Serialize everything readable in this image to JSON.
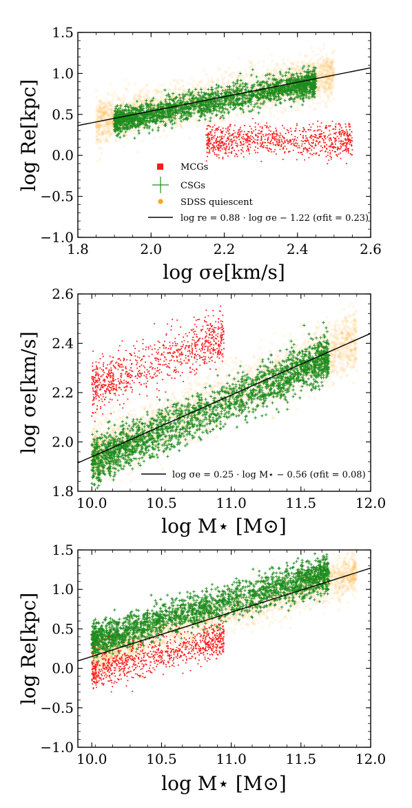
{
  "colors": {
    "mcg": "#ff1a1a",
    "csg": "#1e8c1e",
    "sdss": "#ffa31a",
    "fit": "#000000"
  },
  "legend": {
    "mcg": "MCGs",
    "csg": "CSGs",
    "sdss": "SDSS  quiescent"
  },
  "chart_data": [
    {
      "type": "scatter",
      "xlabel": "log σe[km/s]",
      "ylabel": "log Re[kpc]",
      "xlim": [
        1.8,
        2.6
      ],
      "ylim": [
        -1.0,
        1.5
      ],
      "xticks": [
        "1.8",
        "2.0",
        "2.2",
        "2.4",
        "2.6"
      ],
      "yticks": [
        "−1.0",
        "−0.5",
        "0.0",
        "0.5",
        "1.0",
        "1.5"
      ],
      "xtick_values": [
        1.8,
        2.0,
        2.2,
        2.4,
        2.6
      ],
      "ytick_values": [
        -1.0,
        -0.5,
        0.0,
        0.5,
        1.0,
        1.5
      ],
      "legend_placement": "lower-center",
      "fit": {
        "slope": 0.88,
        "intercept": -1.22,
        "label": "log re = 0.88 · log σe − 1.22 (σfit = 0.23)"
      },
      "series": [
        {
          "name": "SDSS  quiescent",
          "marker": "dot",
          "cloud": {
            "x_range": [
              1.85,
              2.5
            ],
            "scatter": 0.14,
            "relation": [
              0.88,
              -1.22
            ]
          }
        },
        {
          "name": "CSGs",
          "marker": "plus",
          "cloud": {
            "x_range": [
              1.9,
              2.45
            ],
            "scatter": 0.08,
            "relation": [
              0.88,
              -1.26
            ]
          }
        },
        {
          "name": "MCGs",
          "marker": "square",
          "cloud": {
            "x_range": [
              2.15,
              2.55
            ],
            "center_y": 0.18,
            "spread_y": 0.12
          }
        }
      ]
    },
    {
      "type": "scatter",
      "xlabel": "log M⋆ [M⊙]",
      "ylabel": "log σe[km/s]",
      "xlim": [
        9.9,
        12.0
      ],
      "ylim": [
        1.8,
        2.6
      ],
      "xticks": [
        "10.0",
        "10.5",
        "11.0",
        "11.5",
        "12.0"
      ],
      "yticks": [
        "1.8",
        "2.0",
        "2.2",
        "2.4",
        "2.6"
      ],
      "xtick_values": [
        10.0,
        10.5,
        11.0,
        11.5,
        12.0
      ],
      "ytick_values": [
        1.8,
        2.0,
        2.2,
        2.4,
        2.6
      ],
      "legend_placement": "lower-right",
      "fit": {
        "slope": 0.25,
        "intercept": -0.56,
        "label": "log σe = 0.25 · log M⋆ − 0.56 (σfit = 0.08)"
      },
      "series": [
        {
          "name": "SDSS  quiescent",
          "marker": "dot",
          "cloud": {
            "x_range": [
              10.0,
              11.9
            ],
            "scatter": 0.06,
            "relation": [
              0.25,
              -0.56
            ]
          }
        },
        {
          "name": "CSGs",
          "marker": "plus",
          "cloud": {
            "x_range": [
              10.0,
              11.7
            ],
            "scatter": 0.045,
            "relation": [
              0.25,
              -0.58
            ]
          }
        },
        {
          "name": "MCGs",
          "marker": "square",
          "cloud": {
            "x_range": [
              10.0,
              10.95
            ],
            "scatter": 0.05,
            "relation": [
              0.2,
              0.23
            ]
          }
        }
      ]
    },
    {
      "type": "scatter",
      "xlabel": "log M⋆ [M⊙]",
      "ylabel": "log Re[kpc]",
      "xlim": [
        9.9,
        12.0
      ],
      "ylim": [
        -1.0,
        1.5
      ],
      "xticks": [
        "10.0",
        "10.5",
        "11.0",
        "11.5",
        "12.0"
      ],
      "yticks": [
        "−1.0",
        "−0.5",
        "0.0",
        "0.5",
        "1.0",
        "1.5"
      ],
      "xtick_values": [
        10.0,
        10.5,
        11.0,
        11.5,
        12.0
      ],
      "ytick_values": [
        -1.0,
        -0.5,
        0.0,
        0.5,
        1.0,
        1.5
      ],
      "fit": {
        "slope": 0.56,
        "intercept": -5.45,
        "label": ""
      },
      "series": [
        {
          "name": "SDSS  quiescent",
          "marker": "dot",
          "cloud": {
            "x_range": [
              10.0,
              11.9
            ],
            "scatter": 0.13,
            "relation": [
              0.56,
              -5.45
            ]
          }
        },
        {
          "name": "CSGs",
          "marker": "plus",
          "cloud": {
            "x_range": [
              10.0,
              11.7
            ],
            "scatter": 0.11,
            "relation": [
              0.5,
              -4.65
            ]
          }
        },
        {
          "name": "MCGs",
          "marker": "square",
          "cloud": {
            "x_range": [
              10.0,
              10.95
            ],
            "scatter": 0.11,
            "relation": [
              0.45,
              -4.55
            ]
          }
        }
      ]
    }
  ]
}
